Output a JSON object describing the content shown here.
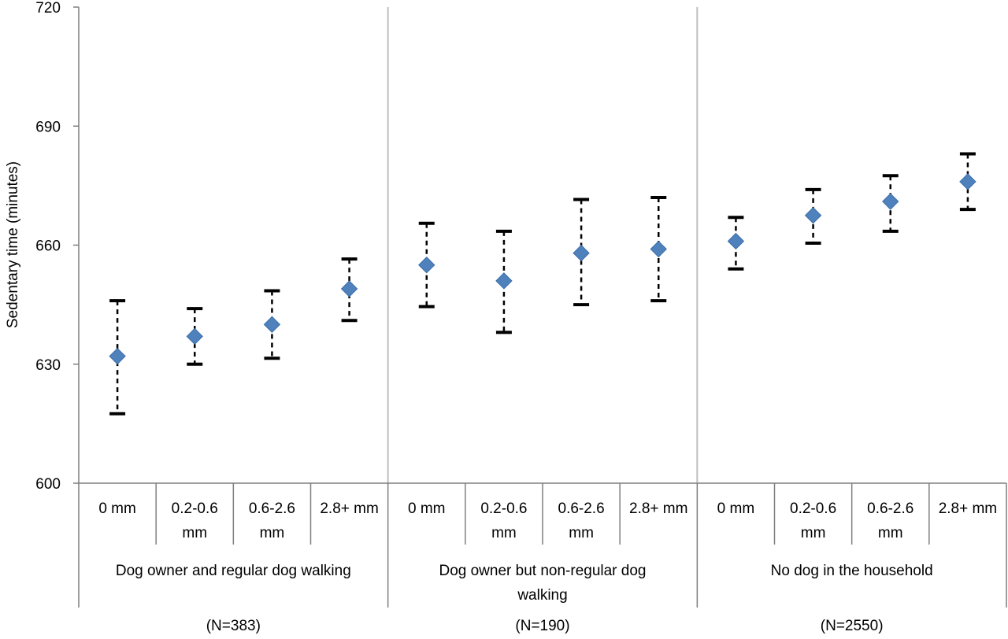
{
  "chart_data": {
    "type": "scatter",
    "title": "",
    "ylabel": "Sedentary time (minutes)",
    "ylim": [
      600,
      720
    ],
    "yticks": [
      600,
      630,
      660,
      690,
      720
    ],
    "grid": false,
    "marker": "diamond",
    "error_bars": true,
    "colors": {
      "marker": "#4F81BD",
      "error_bar": "#000000",
      "separator": "#BFBFBF",
      "axis": "#7F7F7F"
    },
    "categories": [
      "0 mm",
      "0.2-0.6 mm",
      "0.6-2.6 mm",
      "2.8+ mm"
    ],
    "category_lines": [
      [
        "0 mm"
      ],
      [
        "0.2-0.6",
        "mm"
      ],
      [
        "0.6-2.6",
        "mm"
      ],
      [
        "2.8+ mm"
      ]
    ],
    "groups": [
      {
        "name_lines": [
          "Dog owner and regular dog walking"
        ],
        "n_label": "(N=383)",
        "points": [
          {
            "category": "0 mm",
            "value": 632,
            "lower": 617.5,
            "upper": 646
          },
          {
            "category": "0.2-0.6 mm",
            "value": 637,
            "lower": 630,
            "upper": 644
          },
          {
            "category": "0.6-2.6 mm",
            "value": 640,
            "lower": 631.5,
            "upper": 648.5
          },
          {
            "category": "2.8+ mm",
            "value": 649,
            "lower": 641,
            "upper": 656.5
          }
        ]
      },
      {
        "name_lines": [
          "Dog owner but non-regular dog",
          "walking"
        ],
        "n_label": "(N=190)",
        "points": [
          {
            "category": "0 mm",
            "value": 655,
            "lower": 644.5,
            "upper": 665.5
          },
          {
            "category": "0.2-0.6 mm",
            "value": 651,
            "lower": 638,
            "upper": 663.5
          },
          {
            "category": "0.6-2.6 mm",
            "value": 658,
            "lower": 645,
            "upper": 671.5
          },
          {
            "category": "2.8+ mm",
            "value": 659,
            "lower": 646,
            "upper": 672
          }
        ]
      },
      {
        "name_lines": [
          "No dog in the household"
        ],
        "n_label": "(N=2550)",
        "points": [
          {
            "category": "0 mm",
            "value": 661,
            "lower": 654,
            "upper": 667
          },
          {
            "category": "0.2-0.6 mm",
            "value": 667.5,
            "lower": 660.5,
            "upper": 674
          },
          {
            "category": "0.6-2.6 mm",
            "value": 671,
            "lower": 663.5,
            "upper": 677.5
          },
          {
            "category": "2.8+ mm",
            "value": 676,
            "lower": 669,
            "upper": 683
          }
        ]
      }
    ]
  }
}
